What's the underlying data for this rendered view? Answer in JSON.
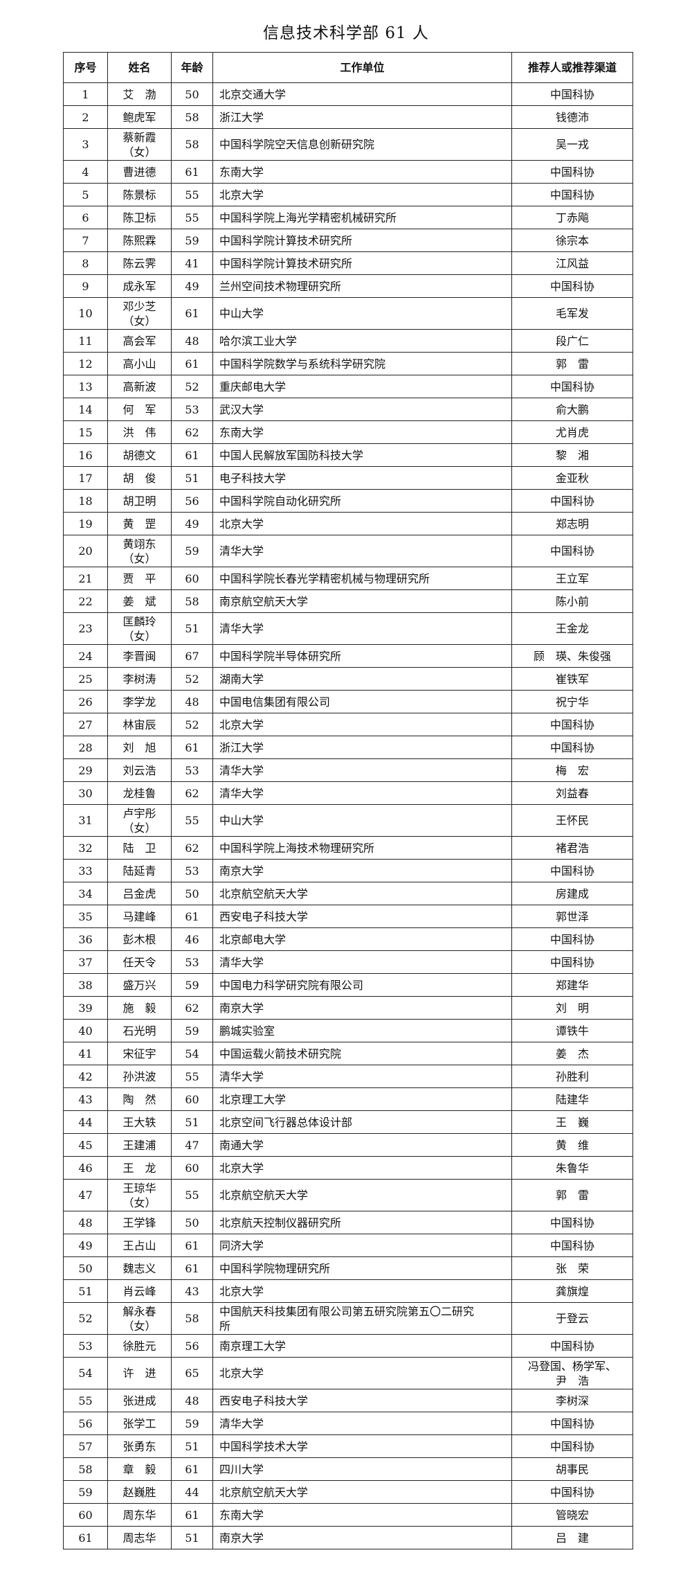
{
  "title": "信息技术科学部 61 人",
  "headers": [
    "序号",
    "姓名",
    "年龄",
    "工作单位",
    "推荐人或推荐渠道"
  ],
  "rows": [
    [
      "1",
      "艾　渤",
      "50",
      "北京交通大学",
      "中国科协"
    ],
    [
      "2",
      "鲍虎军",
      "58",
      "浙江大学",
      "钱德沛"
    ],
    [
      "3",
      "蔡新霞\n（女）",
      "58",
      "中国科学院空天信息创新研究院",
      "吴一戎"
    ],
    [
      "4",
      "曹进德",
      "61",
      "东南大学",
      "中国科协"
    ],
    [
      "5",
      "陈景标",
      "55",
      "北京大学",
      "中国科协"
    ],
    [
      "6",
      "陈卫标",
      "55",
      "中国科学院上海光学精密机械研究所",
      "丁赤飚"
    ],
    [
      "7",
      "陈熙霖",
      "59",
      "中国科学院计算技术研究所",
      "徐宗本"
    ],
    [
      "8",
      "陈云霁",
      "41",
      "中国科学院计算技术研究所",
      "江风益"
    ],
    [
      "9",
      "成永军",
      "49",
      "兰州空间技术物理研究所",
      "中国科协"
    ],
    [
      "10",
      "邓少芝\n（女）",
      "61",
      "中山大学",
      "毛军发"
    ],
    [
      "11",
      "高会军",
      "48",
      "哈尔滨工业大学",
      "段广仁"
    ],
    [
      "12",
      "高小山",
      "61",
      "中国科学院数学与系统科学研究院",
      "郭　雷"
    ],
    [
      "13",
      "高新波",
      "52",
      "重庆邮电大学",
      "中国科协"
    ],
    [
      "14",
      "何　军",
      "53",
      "武汉大学",
      "俞大鹏"
    ],
    [
      "15",
      "洪　伟",
      "62",
      "东南大学",
      "尤肖虎"
    ],
    [
      "16",
      "胡德文",
      "61",
      "中国人民解放军国防科技大学",
      "黎　湘"
    ],
    [
      "17",
      "胡　俊",
      "51",
      "电子科技大学",
      "金亚秋"
    ],
    [
      "18",
      "胡卫明",
      "56",
      "中国科学院自动化研究所",
      "中国科协"
    ],
    [
      "19",
      "黄　罡",
      "49",
      "北京大学",
      "郑志明"
    ],
    [
      "20",
      "黄翊东\n（女）",
      "59",
      "清华大学",
      "中国科协"
    ],
    [
      "21",
      "贾　平",
      "60",
      "中国科学院长春光学精密机械与物理研究所",
      "王立军"
    ],
    [
      "22",
      "姜　斌",
      "58",
      "南京航空航天大学",
      "陈小前"
    ],
    [
      "23",
      "匡麟玲\n（女）",
      "51",
      "清华大学",
      "王金龙"
    ],
    [
      "24",
      "李晋闽",
      "67",
      "中国科学院半导体研究所",
      "顾　瑛、朱俊强"
    ],
    [
      "25",
      "李树涛",
      "52",
      "湖南大学",
      "崔铁军"
    ],
    [
      "26",
      "李学龙",
      "48",
      "中国电信集团有限公司",
      "祝宁华"
    ],
    [
      "27",
      "林宙辰",
      "52",
      "北京大学",
      "中国科协"
    ],
    [
      "28",
      "刘　旭",
      "61",
      "浙江大学",
      "中国科协"
    ],
    [
      "29",
      "刘云浩",
      "53",
      "清华大学",
      "梅　宏"
    ],
    [
      "30",
      "龙桂鲁",
      "62",
      "清华大学",
      "刘益春"
    ],
    [
      "31",
      "卢宇彤\n（女）",
      "55",
      "中山大学",
      "王怀民"
    ],
    [
      "32",
      "陆　卫",
      "62",
      "中国科学院上海技术物理研究所",
      "褚君浩"
    ],
    [
      "33",
      "陆延青",
      "53",
      "南京大学",
      "中国科协"
    ],
    [
      "34",
      "吕金虎",
      "50",
      "北京航空航天大学",
      "房建成"
    ],
    [
      "35",
      "马建峰",
      "61",
      "西安电子科技大学",
      "郭世泽"
    ],
    [
      "36",
      "彭木根",
      "46",
      "北京邮电大学",
      "中国科协"
    ],
    [
      "37",
      "任天令",
      "53",
      "清华大学",
      "中国科协"
    ],
    [
      "38",
      "盛万兴",
      "59",
      "中国电力科学研究院有限公司",
      "郑建华"
    ],
    [
      "39",
      "施　毅",
      "62",
      "南京大学",
      "刘　明"
    ],
    [
      "40",
      "石光明",
      "59",
      "鹏城实验室",
      "谭铁牛"
    ],
    [
      "41",
      "宋征宇",
      "54",
      "中国运载火箭技术研究院",
      "姜　杰"
    ],
    [
      "42",
      "孙洪波",
      "55",
      "清华大学",
      "孙胜利"
    ],
    [
      "43",
      "陶　然",
      "60",
      "北京理工大学",
      "陆建华"
    ],
    [
      "44",
      "王大轶",
      "51",
      "北京空间飞行器总体设计部",
      "王　巍"
    ],
    [
      "45",
      "王建浦",
      "47",
      "南通大学",
      "黄　维"
    ],
    [
      "46",
      "王　龙",
      "60",
      "北京大学",
      "朱鲁华"
    ],
    [
      "47",
      "王琼华\n（女）",
      "55",
      "北京航空航天大学",
      "郭　雷"
    ],
    [
      "48",
      "王学锋",
      "50",
      "北京航天控制仪器研究所",
      "中国科协"
    ],
    [
      "49",
      "王占山",
      "61",
      "同济大学",
      "中国科协"
    ],
    [
      "50",
      "魏志义",
      "61",
      "中国科学院物理研究所",
      "张　荣"
    ],
    [
      "51",
      "肖云峰",
      "43",
      "北京大学",
      "龚旗煌"
    ],
    [
      "52",
      "解永春\n（女）",
      "58",
      "中国航天科技集团有限公司第五研究院第五〇二研究\n所",
      "于登云"
    ],
    [
      "53",
      "徐胜元",
      "56",
      "南京理工大学",
      "中国科协"
    ],
    [
      "54",
      "许　进",
      "65",
      "北京大学",
      "冯登国、杨学军、\n尹　浩"
    ],
    [
      "55",
      "张进成",
      "48",
      "西安电子科技大学",
      "李树深"
    ],
    [
      "56",
      "张学工",
      "59",
      "清华大学",
      "中国科协"
    ],
    [
      "57",
      "张勇东",
      "51",
      "中国科学技术大学",
      "中国科协"
    ],
    [
      "58",
      "章　毅",
      "61",
      "四川大学",
      "胡事民"
    ],
    [
      "59",
      "赵巍胜",
      "44",
      "北京航空航天大学",
      "中国科协"
    ],
    [
      "60",
      "周东华",
      "61",
      "东南大学",
      "管晓宏"
    ],
    [
      "61",
      "周志华",
      "51",
      "南京大学",
      "吕　建"
    ]
  ]
}
